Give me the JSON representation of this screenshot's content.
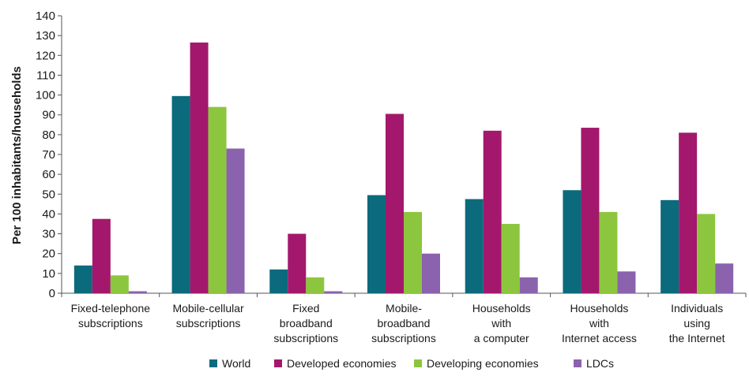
{
  "chart_data": {
    "type": "bar",
    "ylabel": "Per 100 inhabitants/households",
    "ylim": [
      0,
      140
    ],
    "yticks": [
      0,
      10,
      20,
      30,
      40,
      50,
      60,
      70,
      80,
      90,
      100,
      110,
      120,
      130,
      140
    ],
    "grid": false,
    "legend_position": "bottom",
    "categories": [
      [
        "Fixed-telephone",
        "subscriptions"
      ],
      [
        "Mobile-cellular",
        "subscriptions"
      ],
      [
        "Fixed",
        "broadband",
        "subscriptions"
      ],
      [
        "Mobile-",
        "broadband",
        "subscriptions"
      ],
      [
        "Households",
        "with",
        "a computer"
      ],
      [
        "Households",
        "with",
        "Internet access"
      ],
      [
        "Individuals",
        "using",
        "the Internet"
      ]
    ],
    "series": [
      {
        "name": "World",
        "color": "#0b6a7c",
        "values": [
          14,
          99.5,
          12,
          49.5,
          47.5,
          52,
          47
        ]
      },
      {
        "name": "Developed economies",
        "color": "#a3186c",
        "values": [
          37.5,
          126.5,
          30,
          90.5,
          82,
          83.5,
          81
        ]
      },
      {
        "name": "Developing economies",
        "color": "#8cc63e",
        "values": [
          9,
          94,
          8,
          41,
          35,
          41,
          40
        ]
      },
      {
        "name": "LDCs",
        "color": "#8b62ad",
        "values": [
          1,
          73,
          1,
          20,
          8,
          11,
          15
        ]
      }
    ]
  }
}
